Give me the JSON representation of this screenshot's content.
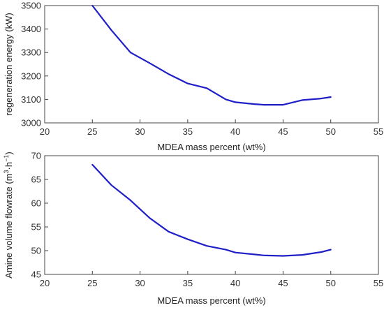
{
  "chart_data": [
    {
      "type": "line",
      "xlabel": "MDEA mass percent (wt%)",
      "ylabel": "regeneration energy (kW)",
      "xlim": [
        20,
        55
      ],
      "ylim": [
        3000,
        3500
      ],
      "xticks": [
        20,
        25,
        30,
        35,
        40,
        45,
        50,
        55
      ],
      "yticks": [
        3000,
        3100,
        3200,
        3300,
        3400,
        3500
      ],
      "grid": false,
      "series": [
        {
          "color": "#1f1fc8",
          "x": [
            25,
            27,
            29,
            31,
            33,
            35,
            37,
            39,
            40,
            42,
            43,
            45,
            47,
            49,
            50
          ],
          "y": [
            3500,
            3395,
            3300,
            3255,
            3208,
            3168,
            3148,
            3100,
            3088,
            3080,
            3077,
            3077,
            3097,
            3104,
            3110
          ]
        }
      ]
    },
    {
      "type": "line",
      "xlabel": "MDEA mass percent (wt%)",
      "ylabel_parts": {
        "pre": "Amine volume flowrate (m",
        "sup1": "3",
        "mid": "·h",
        "sup2": "−1",
        "post": ")"
      },
      "xlim": [
        20,
        55
      ],
      "ylim": [
        45,
        70
      ],
      "xticks": [
        20,
        25,
        30,
        35,
        40,
        45,
        50,
        55
      ],
      "yticks": [
        45,
        50,
        55,
        60,
        65,
        70
      ],
      "grid": false,
      "series": [
        {
          "color": "#1f1fc8",
          "x": [
            25,
            27,
            29,
            31,
            33,
            35,
            37,
            39,
            40,
            42,
            43,
            45,
            47,
            49,
            50
          ],
          "y": [
            68.1,
            63.8,
            60.6,
            56.9,
            54.0,
            52.4,
            51.0,
            50.2,
            49.6,
            49.2,
            49.0,
            48.9,
            49.1,
            49.7,
            50.2
          ]
        }
      ]
    }
  ]
}
